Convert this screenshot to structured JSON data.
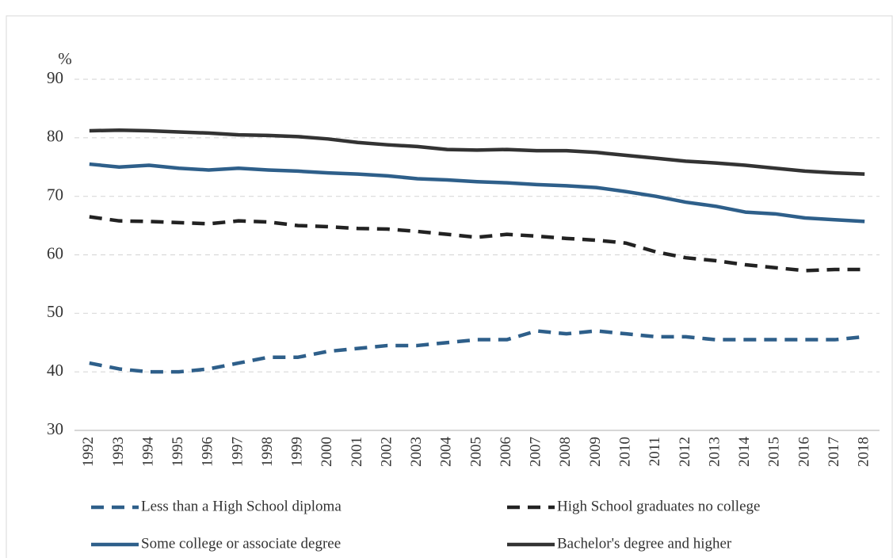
{
  "chart_data": {
    "type": "line",
    "y_label": "%",
    "categories": [
      "1992",
      "1993",
      "1994",
      "1995",
      "1996",
      "1997",
      "1998",
      "1999",
      "2000",
      "2001",
      "2002",
      "2003",
      "2004",
      "2005",
      "2006",
      "2007",
      "2008",
      "2009",
      "2010",
      "2011",
      "2012",
      "2013",
      "2014",
      "2015",
      "2016",
      "2017",
      "2018"
    ],
    "series": [
      {
        "name": "Less than a High School diploma",
        "color": "#2e5f8a",
        "dashed": true,
        "values": [
          41.5,
          40.5,
          40,
          40,
          40.5,
          41.5,
          42.5,
          42.5,
          43.5,
          44,
          44.5,
          44.5,
          45,
          45.5,
          45.5,
          47,
          46.5,
          47,
          46.5,
          46,
          46,
          45.5,
          45.5,
          45.5,
          45.5,
          45.5,
          46
        ]
      },
      {
        "name": "High School graduates  no college",
        "color": "#222222",
        "dashed": true,
        "values": [
          66.5,
          65.8,
          65.7,
          65.5,
          65.3,
          65.8,
          65.6,
          65,
          64.8,
          64.5,
          64.4,
          64,
          63.5,
          63,
          63.5,
          63.2,
          62.8,
          62.5,
          62,
          60.5,
          59.5,
          59,
          58.3,
          57.8,
          57.3,
          57.5,
          57.5
        ]
      },
      {
        "name": "Some college or associate degree",
        "color": "#2e5f8a",
        "dashed": false,
        "values": [
          75.5,
          75,
          75.3,
          74.8,
          74.5,
          74.8,
          74.5,
          74.3,
          74,
          73.8,
          73.5,
          73,
          72.8,
          72.5,
          72.3,
          72,
          71.8,
          71.5,
          70.8,
          70,
          69,
          68.3,
          67.3,
          67,
          66.3,
          66,
          65.7
        ]
      },
      {
        "name": "Bachelor's degree and higher",
        "color": "#333333",
        "dashed": false,
        "values": [
          81.2,
          81.3,
          81.2,
          81,
          80.8,
          80.5,
          80.4,
          80.2,
          79.8,
          79.2,
          78.8,
          78.5,
          78,
          77.9,
          78,
          77.8,
          77.8,
          77.5,
          77,
          76.5,
          76,
          75.7,
          75.3,
          74.8,
          74.3,
          74,
          73.8
        ]
      }
    ],
    "ylim": [
      30,
      90
    ],
    "yticks": [
      30,
      40,
      50,
      60,
      70,
      80,
      90
    ],
    "grid": true
  }
}
